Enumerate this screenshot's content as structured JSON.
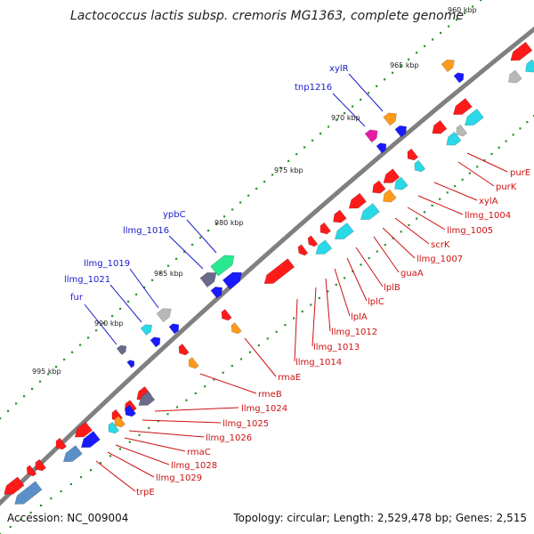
{
  "title": "Lactococcus lactis subsp. cremoris MG1363, complete genome",
  "footer": {
    "accession": "Accession: NC_009004",
    "topology": "Topology: circular; Length: 2,529,478 bp; Genes: 2,515"
  },
  "colors": {
    "backbone": "#808080",
    "tick": "#2f8f2f",
    "label_forward": "#1a1acc",
    "label_reverse": "#cc1111",
    "gene_red": "#ff1a1a",
    "gene_blue": "#1a1aff",
    "gene_cyan": "#2ad8e8",
    "gene_steel": "#5a8fc8",
    "gene_gray": "#b8b8b8",
    "gene_dark": "#6a6a8a",
    "gene_orange": "#ff9a1a",
    "gene_magenta": "#e81aa8",
    "gene_green": "#2ae890"
  },
  "scale_labels": [
    "960 kbp",
    "965 kbp",
    "970 kbp",
    "975 kbp",
    "980 kbp",
    "985 kbp",
    "990 kbp",
    "995 kbp"
  ],
  "forward_labels": [
    "xylR",
    "tnp1216",
    "ypbC",
    "llmg_1016",
    "llmg_1019",
    "llmg_1021",
    "fur"
  ],
  "reverse_labels": [
    "purE",
    "purK",
    "xylA",
    "llmg_1004",
    "llmg_1005",
    "scrK",
    "llmg_1007",
    "guaA",
    "lplB",
    "lplC",
    "lplA",
    "llmg_1012",
    "llmg_1013",
    "llmg_1014",
    "rmaE",
    "rmeB",
    "llmg_1024",
    "llmg_1025",
    "llmg_1026",
    "rmaC",
    "llmg_1028",
    "llmg_1029",
    "trpE"
  ]
}
